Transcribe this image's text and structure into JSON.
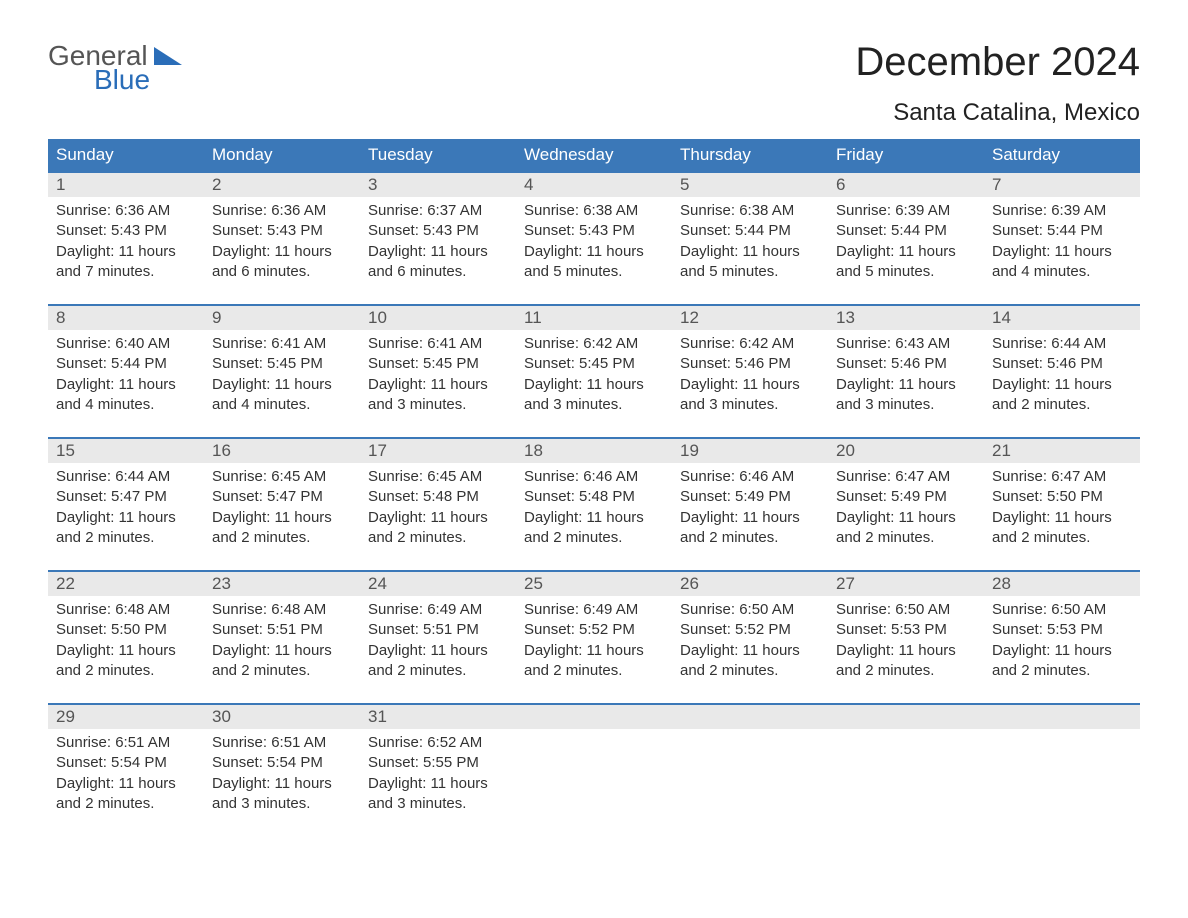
{
  "logo": {
    "line1": "General",
    "line2": "Blue"
  },
  "title": "December 2024",
  "location": "Santa Catalina, Mexico",
  "colors": {
    "header_bg": "#3b78b8",
    "header_text": "#ffffff",
    "daynum_bg": "#e9e9e9",
    "daynum_border": "#3b78b8",
    "body_text": "#333333",
    "daynum_text": "#555555",
    "page_bg": "#ffffff",
    "logo_blue": "#2a6db8",
    "logo_gray": "#555555"
  },
  "typography": {
    "title_fontsize": 40,
    "location_fontsize": 24,
    "dow_fontsize": 17,
    "daynum_fontsize": 17,
    "body_fontsize": 15,
    "font_family": "Arial"
  },
  "days_of_week": [
    "Sunday",
    "Monday",
    "Tuesday",
    "Wednesday",
    "Thursday",
    "Friday",
    "Saturday"
  ],
  "weeks": [
    [
      {
        "num": "1",
        "sunrise": "Sunrise: 6:36 AM",
        "sunset": "Sunset: 5:43 PM",
        "day1": "Daylight: 11 hours",
        "day2": "and 7 minutes."
      },
      {
        "num": "2",
        "sunrise": "Sunrise: 6:36 AM",
        "sunset": "Sunset: 5:43 PM",
        "day1": "Daylight: 11 hours",
        "day2": "and 6 minutes."
      },
      {
        "num": "3",
        "sunrise": "Sunrise: 6:37 AM",
        "sunset": "Sunset: 5:43 PM",
        "day1": "Daylight: 11 hours",
        "day2": "and 6 minutes."
      },
      {
        "num": "4",
        "sunrise": "Sunrise: 6:38 AM",
        "sunset": "Sunset: 5:43 PM",
        "day1": "Daylight: 11 hours",
        "day2": "and 5 minutes."
      },
      {
        "num": "5",
        "sunrise": "Sunrise: 6:38 AM",
        "sunset": "Sunset: 5:44 PM",
        "day1": "Daylight: 11 hours",
        "day2": "and 5 minutes."
      },
      {
        "num": "6",
        "sunrise": "Sunrise: 6:39 AM",
        "sunset": "Sunset: 5:44 PM",
        "day1": "Daylight: 11 hours",
        "day2": "and 5 minutes."
      },
      {
        "num": "7",
        "sunrise": "Sunrise: 6:39 AM",
        "sunset": "Sunset: 5:44 PM",
        "day1": "Daylight: 11 hours",
        "day2": "and 4 minutes."
      }
    ],
    [
      {
        "num": "8",
        "sunrise": "Sunrise: 6:40 AM",
        "sunset": "Sunset: 5:44 PM",
        "day1": "Daylight: 11 hours",
        "day2": "and 4 minutes."
      },
      {
        "num": "9",
        "sunrise": "Sunrise: 6:41 AM",
        "sunset": "Sunset: 5:45 PM",
        "day1": "Daylight: 11 hours",
        "day2": "and 4 minutes."
      },
      {
        "num": "10",
        "sunrise": "Sunrise: 6:41 AM",
        "sunset": "Sunset: 5:45 PM",
        "day1": "Daylight: 11 hours",
        "day2": "and 3 minutes."
      },
      {
        "num": "11",
        "sunrise": "Sunrise: 6:42 AM",
        "sunset": "Sunset: 5:45 PM",
        "day1": "Daylight: 11 hours",
        "day2": "and 3 minutes."
      },
      {
        "num": "12",
        "sunrise": "Sunrise: 6:42 AM",
        "sunset": "Sunset: 5:46 PM",
        "day1": "Daylight: 11 hours",
        "day2": "and 3 minutes."
      },
      {
        "num": "13",
        "sunrise": "Sunrise: 6:43 AM",
        "sunset": "Sunset: 5:46 PM",
        "day1": "Daylight: 11 hours",
        "day2": "and 3 minutes."
      },
      {
        "num": "14",
        "sunrise": "Sunrise: 6:44 AM",
        "sunset": "Sunset: 5:46 PM",
        "day1": "Daylight: 11 hours",
        "day2": "and 2 minutes."
      }
    ],
    [
      {
        "num": "15",
        "sunrise": "Sunrise: 6:44 AM",
        "sunset": "Sunset: 5:47 PM",
        "day1": "Daylight: 11 hours",
        "day2": "and 2 minutes."
      },
      {
        "num": "16",
        "sunrise": "Sunrise: 6:45 AM",
        "sunset": "Sunset: 5:47 PM",
        "day1": "Daylight: 11 hours",
        "day2": "and 2 minutes."
      },
      {
        "num": "17",
        "sunrise": "Sunrise: 6:45 AM",
        "sunset": "Sunset: 5:48 PM",
        "day1": "Daylight: 11 hours",
        "day2": "and 2 minutes."
      },
      {
        "num": "18",
        "sunrise": "Sunrise: 6:46 AM",
        "sunset": "Sunset: 5:48 PM",
        "day1": "Daylight: 11 hours",
        "day2": "and 2 minutes."
      },
      {
        "num": "19",
        "sunrise": "Sunrise: 6:46 AM",
        "sunset": "Sunset: 5:49 PM",
        "day1": "Daylight: 11 hours",
        "day2": "and 2 minutes."
      },
      {
        "num": "20",
        "sunrise": "Sunrise: 6:47 AM",
        "sunset": "Sunset: 5:49 PM",
        "day1": "Daylight: 11 hours",
        "day2": "and 2 minutes."
      },
      {
        "num": "21",
        "sunrise": "Sunrise: 6:47 AM",
        "sunset": "Sunset: 5:50 PM",
        "day1": "Daylight: 11 hours",
        "day2": "and 2 minutes."
      }
    ],
    [
      {
        "num": "22",
        "sunrise": "Sunrise: 6:48 AM",
        "sunset": "Sunset: 5:50 PM",
        "day1": "Daylight: 11 hours",
        "day2": "and 2 minutes."
      },
      {
        "num": "23",
        "sunrise": "Sunrise: 6:48 AM",
        "sunset": "Sunset: 5:51 PM",
        "day1": "Daylight: 11 hours",
        "day2": "and 2 minutes."
      },
      {
        "num": "24",
        "sunrise": "Sunrise: 6:49 AM",
        "sunset": "Sunset: 5:51 PM",
        "day1": "Daylight: 11 hours",
        "day2": "and 2 minutes."
      },
      {
        "num": "25",
        "sunrise": "Sunrise: 6:49 AM",
        "sunset": "Sunset: 5:52 PM",
        "day1": "Daylight: 11 hours",
        "day2": "and 2 minutes."
      },
      {
        "num": "26",
        "sunrise": "Sunrise: 6:50 AM",
        "sunset": "Sunset: 5:52 PM",
        "day1": "Daylight: 11 hours",
        "day2": "and 2 minutes."
      },
      {
        "num": "27",
        "sunrise": "Sunrise: 6:50 AM",
        "sunset": "Sunset: 5:53 PM",
        "day1": "Daylight: 11 hours",
        "day2": "and 2 minutes."
      },
      {
        "num": "28",
        "sunrise": "Sunrise: 6:50 AM",
        "sunset": "Sunset: 5:53 PM",
        "day1": "Daylight: 11 hours",
        "day2": "and 2 minutes."
      }
    ],
    [
      {
        "num": "29",
        "sunrise": "Sunrise: 6:51 AM",
        "sunset": "Sunset: 5:54 PM",
        "day1": "Daylight: 11 hours",
        "day2": "and 2 minutes."
      },
      {
        "num": "30",
        "sunrise": "Sunrise: 6:51 AM",
        "sunset": "Sunset: 5:54 PM",
        "day1": "Daylight: 11 hours",
        "day2": "and 3 minutes."
      },
      {
        "num": "31",
        "sunrise": "Sunrise: 6:52 AM",
        "sunset": "Sunset: 5:55 PM",
        "day1": "Daylight: 11 hours",
        "day2": "and 3 minutes."
      },
      null,
      null,
      null,
      null
    ]
  ]
}
